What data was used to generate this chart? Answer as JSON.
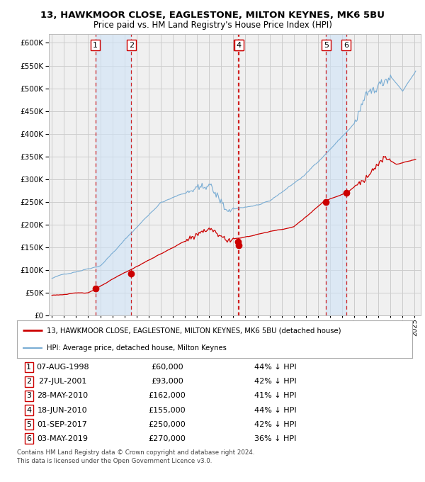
{
  "title1": "13, HAWKMOOR CLOSE, EAGLESTONE, MILTON KEYNES, MK6 5BU",
  "title2": "Price paid vs. HM Land Registry's House Price Index (HPI)",
  "legend_line1": "13, HAWKMOOR CLOSE, EAGLESTONE, MILTON KEYNES, MK6 5BU (detached house)",
  "legend_line2": "HPI: Average price, detached house, Milton Keynes",
  "footer1": "Contains HM Land Registry data © Crown copyright and database right 2024.",
  "footer2": "This data is licensed under the Open Government Licence v3.0.",
  "transactions": [
    {
      "num": 1,
      "date": "07-AUG-1998",
      "year": 1998.6,
      "price": 60000,
      "pct": "44%",
      "dir": "↓"
    },
    {
      "num": 2,
      "date": "27-JUL-2001",
      "year": 2001.57,
      "price": 93000,
      "pct": "42%",
      "dir": "↓"
    },
    {
      "num": 3,
      "date": "28-MAY-2010",
      "year": 2010.41,
      "price": 162000,
      "pct": "41%",
      "dir": "↓"
    },
    {
      "num": 4,
      "date": "18-JUN-2010",
      "year": 2010.46,
      "price": 155000,
      "pct": "44%",
      "dir": "↓"
    },
    {
      "num": 5,
      "date": "01-SEP-2017",
      "year": 2017.67,
      "price": 250000,
      "pct": "42%",
      "dir": "↓"
    },
    {
      "num": 6,
      "date": "03-MAY-2019",
      "year": 2019.33,
      "price": 270000,
      "pct": "36%",
      "dir": "↓"
    }
  ],
  "hpi_color": "#7aadd4",
  "price_color": "#cc0000",
  "dashed_color": "#cc0000",
  "grid_color": "#cccccc",
  "bg_color": "#ffffff",
  "plot_bg": "#f0f0f0",
  "shade_color": "#d0e4f7",
  "ylim": [
    0,
    620000
  ],
  "yticks": [
    0,
    50000,
    100000,
    150000,
    200000,
    250000,
    300000,
    350000,
    400000,
    450000,
    500000,
    550000,
    600000
  ],
  "xlim_start": 1994.75,
  "xlim_end": 2025.5
}
